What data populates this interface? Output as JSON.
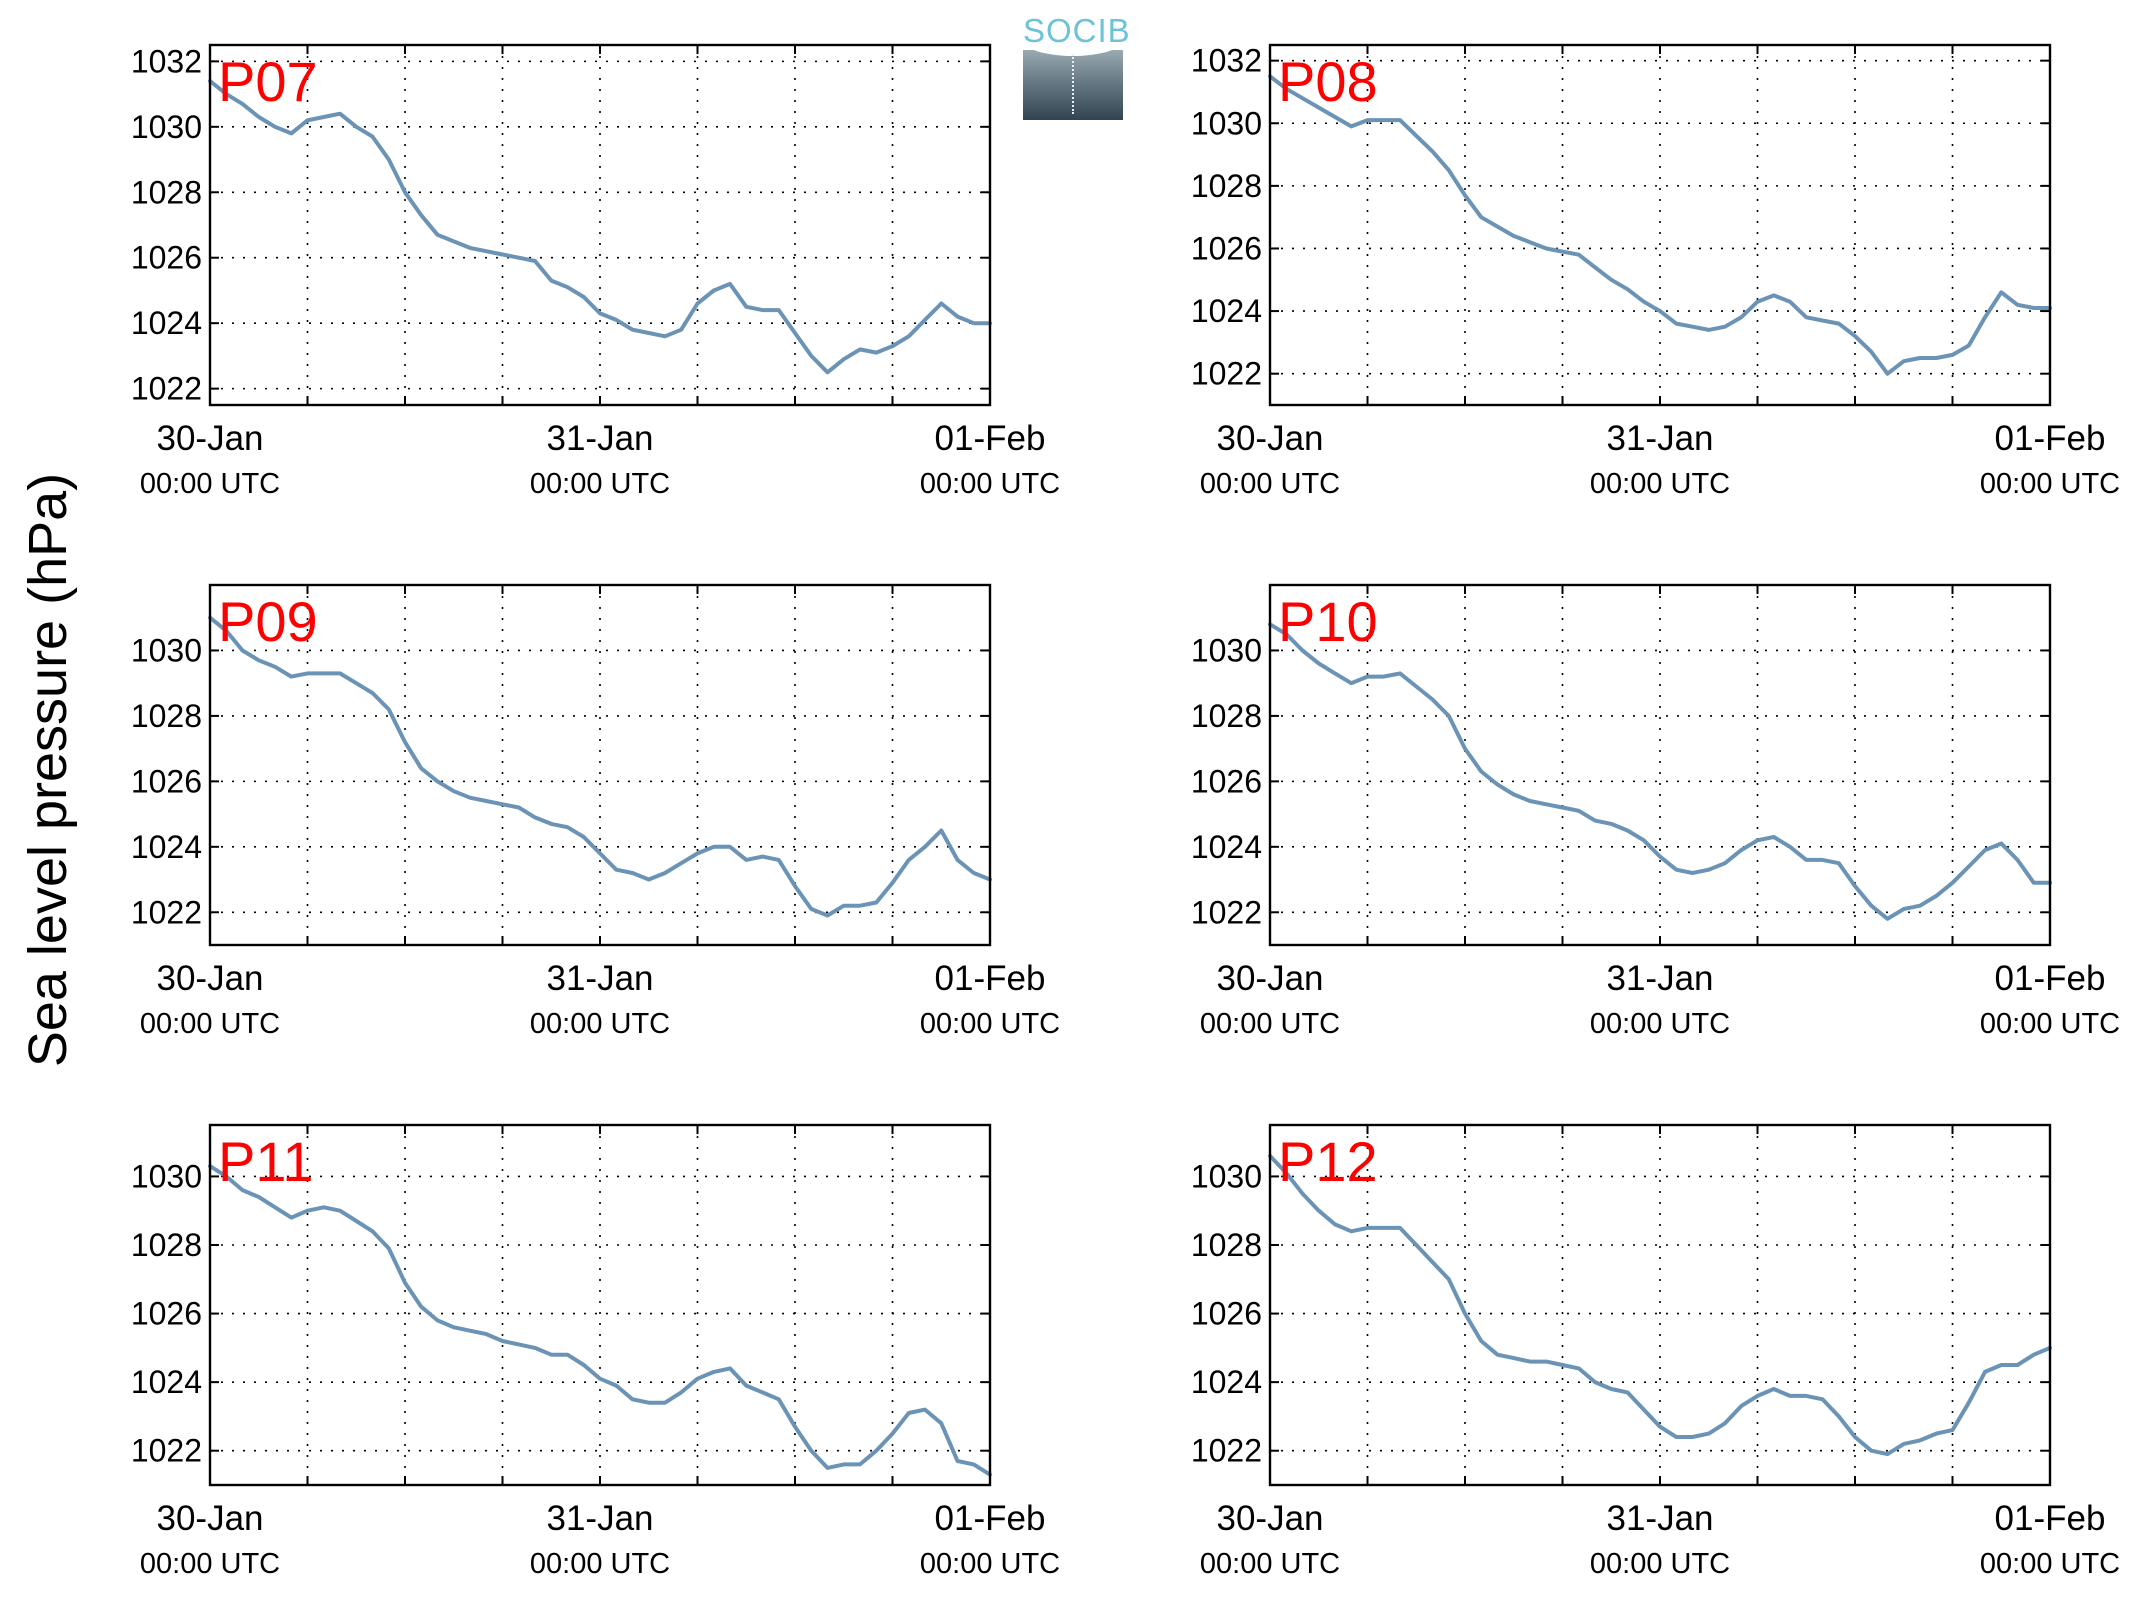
{
  "figure": {
    "ylabel": "Sea level pressure (hPa)",
    "logo_text": "SOCIB",
    "line_color": "#6a93b5",
    "label_color": "#ff0000"
  },
  "chart_data": [
    {
      "type": "line",
      "title": "P07",
      "ylabel": "Sea level pressure (hPa)",
      "x_ticks": [
        {
          "date": "30-Jan",
          "time": "00:00 UTC"
        },
        {
          "date": "31-Jan",
          "time": "00:00 UTC"
        },
        {
          "date": "01-Feb",
          "time": "00:00 UTC"
        }
      ],
      "x_unit": "hours since 30-Jan 00:00 UTC",
      "xlim": [
        0,
        48
      ],
      "ylim": [
        1021.5,
        1032.5
      ],
      "yticks": [
        1022,
        1024,
        1026,
        1028,
        1030,
        1032
      ],
      "grid": true,
      "x": [
        0,
        1,
        2,
        3,
        4,
        5,
        6,
        7,
        8,
        9,
        10,
        11,
        12,
        13,
        14,
        15,
        16,
        17,
        18,
        19,
        20,
        21,
        22,
        23,
        24,
        25,
        26,
        27,
        28,
        29,
        30,
        31,
        32,
        33,
        34,
        35,
        36,
        37,
        38,
        39,
        40,
        41,
        42,
        43,
        44,
        45,
        46,
        47,
        48
      ],
      "y": [
        1031.4,
        1031.0,
        1030.7,
        1030.3,
        1030.0,
        1029.8,
        1030.2,
        1030.3,
        1030.4,
        1030.0,
        1029.7,
        1029.0,
        1028.0,
        1027.3,
        1026.7,
        1026.5,
        1026.3,
        1026.2,
        1026.1,
        1026.0,
        1025.9,
        1025.3,
        1025.1,
        1024.8,
        1024.3,
        1024.1,
        1023.8,
        1023.7,
        1023.6,
        1023.8,
        1024.6,
        1025.0,
        1025.2,
        1024.5,
        1024.4,
        1024.4,
        1023.7,
        1023.0,
        1022.5,
        1022.9,
        1023.2,
        1023.1,
        1023.3,
        1023.6,
        1024.1,
        1024.6,
        1024.2,
        1024.0,
        1024.0
      ]
    },
    {
      "type": "line",
      "title": "P08",
      "ylabel": "Sea level pressure (hPa)",
      "x_ticks": [
        {
          "date": "30-Jan",
          "time": "00:00 UTC"
        },
        {
          "date": "31-Jan",
          "time": "00:00 UTC"
        },
        {
          "date": "01-Feb",
          "time": "00:00 UTC"
        }
      ],
      "x_unit": "hours since 30-Jan 00:00 UTC",
      "xlim": [
        0,
        48
      ],
      "ylim": [
        1021,
        1032.5
      ],
      "yticks": [
        1022,
        1024,
        1026,
        1028,
        1030,
        1032
      ],
      "grid": true,
      "x": [
        0,
        1,
        2,
        3,
        4,
        5,
        6,
        7,
        8,
        9,
        10,
        11,
        12,
        13,
        14,
        15,
        16,
        17,
        18,
        19,
        20,
        21,
        22,
        23,
        24,
        25,
        26,
        27,
        28,
        29,
        30,
        31,
        32,
        33,
        34,
        35,
        36,
        37,
        38,
        39,
        40,
        41,
        42,
        43,
        44,
        45,
        46,
        47,
        48
      ],
      "y": [
        1031.5,
        1031.1,
        1030.8,
        1030.5,
        1030.2,
        1029.9,
        1030.1,
        1030.1,
        1030.1,
        1029.6,
        1029.1,
        1028.5,
        1027.7,
        1027.0,
        1026.7,
        1026.4,
        1026.2,
        1026.0,
        1025.9,
        1025.8,
        1025.4,
        1025.0,
        1024.7,
        1024.3,
        1024.0,
        1023.6,
        1023.5,
        1023.4,
        1023.5,
        1023.8,
        1024.3,
        1024.5,
        1024.3,
        1023.8,
        1023.7,
        1023.6,
        1023.2,
        1022.7,
        1022.0,
        1022.4,
        1022.5,
        1022.5,
        1022.6,
        1022.9,
        1023.8,
        1024.6,
        1024.2,
        1024.1,
        1024.1
      ]
    },
    {
      "type": "line",
      "title": "P09",
      "ylabel": "Sea level pressure (hPa)",
      "x_ticks": [
        {
          "date": "30-Jan",
          "time": "00:00 UTC"
        },
        {
          "date": "31-Jan",
          "time": "00:00 UTC"
        },
        {
          "date": "01-Feb",
          "time": "00:00 UTC"
        }
      ],
      "x_unit": "hours since 30-Jan 00:00 UTC",
      "xlim": [
        0,
        48
      ],
      "ylim": [
        1021,
        1032
      ],
      "yticks": [
        1022,
        1024,
        1026,
        1028,
        1030
      ],
      "grid": true,
      "x": [
        0,
        1,
        2,
        3,
        4,
        5,
        6,
        7,
        8,
        9,
        10,
        11,
        12,
        13,
        14,
        15,
        16,
        17,
        18,
        19,
        20,
        21,
        22,
        23,
        24,
        25,
        26,
        27,
        28,
        29,
        30,
        31,
        32,
        33,
        34,
        35,
        36,
        37,
        38,
        39,
        40,
        41,
        42,
        43,
        44,
        45,
        46,
        47,
        48
      ],
      "y": [
        1031.0,
        1030.6,
        1030.0,
        1029.7,
        1029.5,
        1029.2,
        1029.3,
        1029.3,
        1029.3,
        1029.0,
        1028.7,
        1028.2,
        1027.2,
        1026.4,
        1026.0,
        1025.7,
        1025.5,
        1025.4,
        1025.3,
        1025.2,
        1024.9,
        1024.7,
        1024.6,
        1024.3,
        1023.8,
        1023.3,
        1023.2,
        1023.0,
        1023.2,
        1023.5,
        1023.8,
        1024.0,
        1024.0,
        1023.6,
        1023.7,
        1023.6,
        1022.8,
        1022.1,
        1021.9,
        1022.2,
        1022.2,
        1022.3,
        1022.9,
        1023.6,
        1024.0,
        1024.5,
        1023.6,
        1023.2,
        1023.0
      ]
    },
    {
      "type": "line",
      "title": "P10",
      "ylabel": "Sea level pressure (hPa)",
      "x_ticks": [
        {
          "date": "30-Jan",
          "time": "00:00 UTC"
        },
        {
          "date": "31-Jan",
          "time": "00:00 UTC"
        },
        {
          "date": "01-Feb",
          "time": "00:00 UTC"
        }
      ],
      "x_unit": "hours since 30-Jan 00:00 UTC",
      "xlim": [
        0,
        48
      ],
      "ylim": [
        1021,
        1032
      ],
      "yticks": [
        1022,
        1024,
        1026,
        1028,
        1030
      ],
      "grid": true,
      "x": [
        0,
        1,
        2,
        3,
        4,
        5,
        6,
        7,
        8,
        9,
        10,
        11,
        12,
        13,
        14,
        15,
        16,
        17,
        18,
        19,
        20,
        21,
        22,
        23,
        24,
        25,
        26,
        27,
        28,
        29,
        30,
        31,
        32,
        33,
        34,
        35,
        36,
        37,
        38,
        39,
        40,
        41,
        42,
        43,
        44,
        45,
        46,
        47,
        48
      ],
      "y": [
        1030.8,
        1030.5,
        1030.0,
        1029.6,
        1029.3,
        1029.0,
        1029.2,
        1029.2,
        1029.3,
        1028.9,
        1028.5,
        1028.0,
        1027.0,
        1026.3,
        1025.9,
        1025.6,
        1025.4,
        1025.3,
        1025.2,
        1025.1,
        1024.8,
        1024.7,
        1024.5,
        1024.2,
        1023.7,
        1023.3,
        1023.2,
        1023.3,
        1023.5,
        1023.9,
        1024.2,
        1024.3,
        1024.0,
        1023.6,
        1023.6,
        1023.5,
        1022.8,
        1022.2,
        1021.8,
        1022.1,
        1022.2,
        1022.5,
        1022.9,
        1023.4,
        1023.9,
        1024.1,
        1023.6,
        1022.9,
        1022.9
      ]
    },
    {
      "type": "line",
      "title": "P11",
      "ylabel": "Sea level pressure (hPa)",
      "x_ticks": [
        {
          "date": "30-Jan",
          "time": "00:00 UTC"
        },
        {
          "date": "31-Jan",
          "time": "00:00 UTC"
        },
        {
          "date": "01-Feb",
          "time": "00:00 UTC"
        }
      ],
      "x_unit": "hours since 30-Jan 00:00 UTC",
      "xlim": [
        0,
        48
      ],
      "ylim": [
        1021,
        1031.5
      ],
      "yticks": [
        1022,
        1024,
        1026,
        1028,
        1030
      ],
      "grid": true,
      "x": [
        0,
        1,
        2,
        3,
        4,
        5,
        6,
        7,
        8,
        9,
        10,
        11,
        12,
        13,
        14,
        15,
        16,
        17,
        18,
        19,
        20,
        21,
        22,
        23,
        24,
        25,
        26,
        27,
        28,
        29,
        30,
        31,
        32,
        33,
        34,
        35,
        36,
        37,
        38,
        39,
        40,
        41,
        42,
        43,
        44,
        45,
        46,
        47,
        48
      ],
      "y": [
        1030.3,
        1030.0,
        1029.6,
        1029.4,
        1029.1,
        1028.8,
        1029.0,
        1029.1,
        1029.0,
        1028.7,
        1028.4,
        1027.9,
        1026.9,
        1026.2,
        1025.8,
        1025.6,
        1025.5,
        1025.4,
        1025.2,
        1025.1,
        1025.0,
        1024.8,
        1024.8,
        1024.5,
        1024.1,
        1023.9,
        1023.5,
        1023.4,
        1023.4,
        1023.7,
        1024.1,
        1024.3,
        1024.4,
        1023.9,
        1023.7,
        1023.5,
        1022.7,
        1022.0,
        1021.5,
        1021.6,
        1021.6,
        1022.0,
        1022.5,
        1023.1,
        1023.2,
        1022.8,
        1021.7,
        1021.6,
        1021.3
      ]
    },
    {
      "type": "line",
      "title": "P12",
      "ylabel": "Sea level pressure (hPa)",
      "x_ticks": [
        {
          "date": "30-Jan",
          "time": "00:00 UTC"
        },
        {
          "date": "31-Jan",
          "time": "00:00 UTC"
        },
        {
          "date": "01-Feb",
          "time": "00:00 UTC"
        }
      ],
      "x_unit": "hours since 30-Jan 00:00 UTC",
      "xlim": [
        0,
        48
      ],
      "ylim": [
        1021,
        1031.5
      ],
      "yticks": [
        1022,
        1024,
        1026,
        1028,
        1030
      ],
      "grid": true,
      "x": [
        0,
        1,
        2,
        3,
        4,
        5,
        6,
        7,
        8,
        9,
        10,
        11,
        12,
        13,
        14,
        15,
        16,
        17,
        18,
        19,
        20,
        21,
        22,
        23,
        24,
        25,
        26,
        27,
        28,
        29,
        30,
        31,
        32,
        33,
        34,
        35,
        36,
        37,
        38,
        39,
        40,
        41,
        42,
        43,
        44,
        45,
        46,
        47,
        48
      ],
      "y": [
        1030.6,
        1030.1,
        1029.5,
        1029.0,
        1028.6,
        1028.4,
        1028.5,
        1028.5,
        1028.5,
        1028.0,
        1027.5,
        1027.0,
        1026.0,
        1025.2,
        1024.8,
        1024.7,
        1024.6,
        1024.6,
        1024.5,
        1024.4,
        1024.0,
        1023.8,
        1023.7,
        1023.2,
        1022.7,
        1022.4,
        1022.4,
        1022.5,
        1022.8,
        1023.3,
        1023.6,
        1023.8,
        1023.6,
        1023.6,
        1023.5,
        1023.0,
        1022.4,
        1022.0,
        1021.9,
        1022.2,
        1022.3,
        1022.5,
        1022.6,
        1023.4,
        1024.3,
        1024.5,
        1024.5,
        1024.8,
        1025.0
      ]
    }
  ]
}
